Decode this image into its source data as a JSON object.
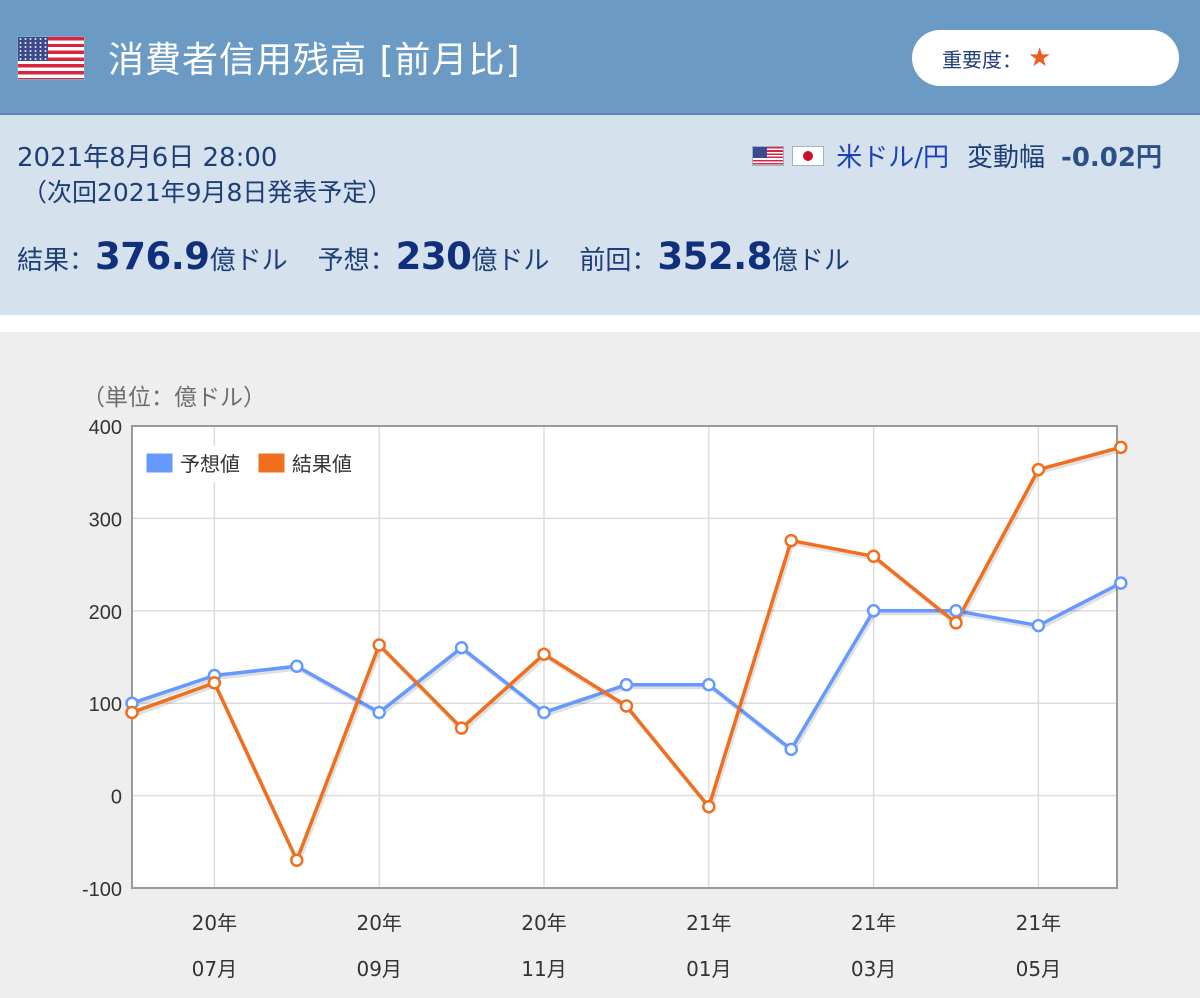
{
  "header": {
    "title": "消費者信用残高 [前月比]",
    "importance_label": "重要度：",
    "importance_icon": "star-icon"
  },
  "info": {
    "date": "2021年8月6日 28:00",
    "next": "（次回2021年9月8日発表予定）",
    "pair": "米ドル/円",
    "volatility_label": "変動幅",
    "volatility_value": "-0.02円",
    "result_label": "結果：",
    "result_value": "376.9",
    "result_unit": "億ドル",
    "forecast_label": "予想：",
    "forecast_value": "230",
    "forecast_unit": "億ドル",
    "previous_label": "前回：",
    "previous_value": "352.8",
    "previous_unit": "億ドル"
  },
  "chart_data": {
    "type": "line",
    "unit_label": "（単位：億ドル）",
    "ylim": [
      -100,
      400
    ],
    "yticks": [
      -100,
      0,
      100,
      200,
      300,
      400
    ],
    "x_index": [
      0,
      1,
      2,
      3,
      4,
      5,
      6,
      7,
      8,
      9,
      10,
      11,
      12
    ],
    "xtick_labels": [
      {
        "index": 1,
        "year": "20年",
        "month": "07月"
      },
      {
        "index": 3,
        "year": "20年",
        "month": "09月"
      },
      {
        "index": 5,
        "year": "20年",
        "month": "11月"
      },
      {
        "index": 7,
        "year": "21年",
        "month": "01月"
      },
      {
        "index": 9,
        "year": "21年",
        "month": "03月"
      },
      {
        "index": 11,
        "year": "21年",
        "month": "05月"
      }
    ],
    "series": [
      {
        "name": "予想値",
        "color": "#6699ff",
        "values": [
          100,
          130,
          140,
          90,
          160,
          90,
          120,
          120,
          50,
          200,
          200,
          184,
          230
        ]
      },
      {
        "name": "結果値",
        "color": "#f06f1f",
        "values": [
          90,
          122,
          -70,
          163,
          73,
          153,
          97,
          -12,
          276,
          259,
          187,
          352.8,
          376.9
        ]
      }
    ],
    "grid": true,
    "legend_placement": "top-left"
  }
}
